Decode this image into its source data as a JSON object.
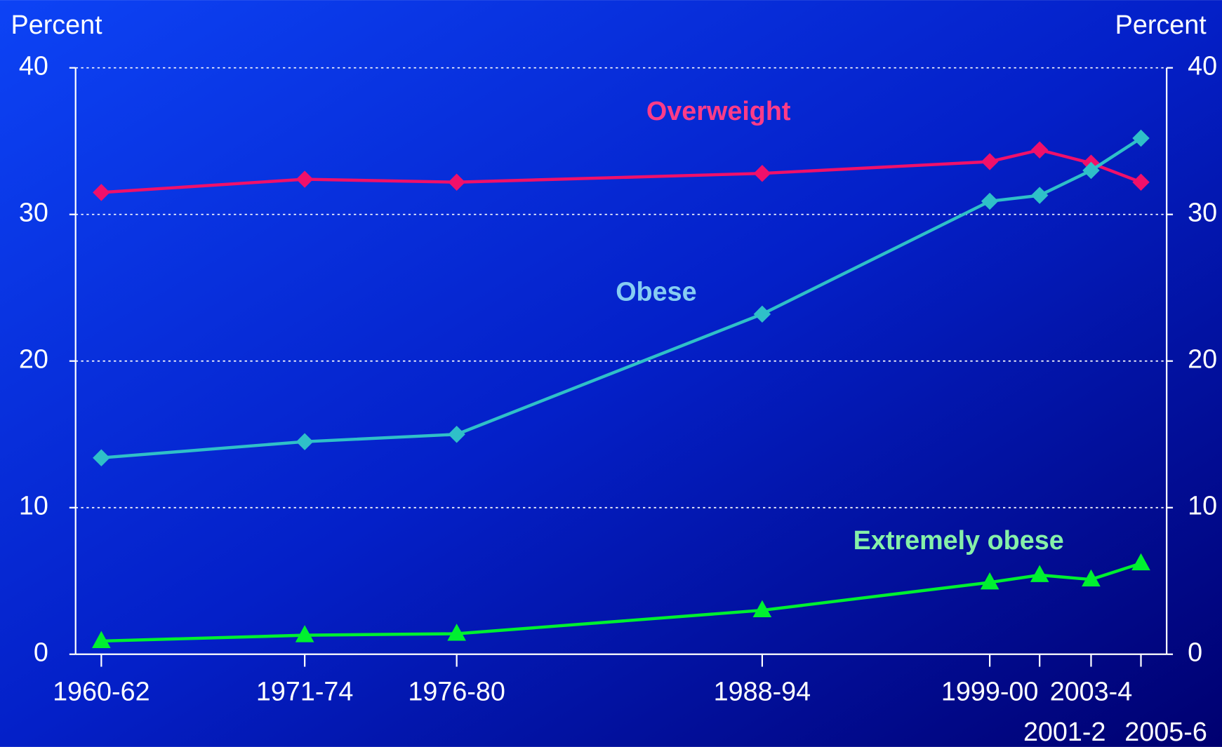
{
  "chart_data": {
    "type": "line",
    "ylabel": "Percent",
    "y2label": "Percent",
    "categories": [
      "1960-62",
      "1971-74",
      "1976-80",
      "1988-94",
      "1999-00",
      "2001-2",
      "2003-4",
      "2005-6"
    ],
    "series": [
      {
        "name": "Overweight",
        "color": "#f0106a",
        "label_color": "#ff3c88",
        "marker": "diamond",
        "values": [
          31.5,
          32.4,
          32.2,
          32.8,
          33.6,
          34.4,
          33.5,
          32.2
        ]
      },
      {
        "name": "Obese",
        "color": "#2fc0c8",
        "label_color": "#86cdf2",
        "marker": "diamond",
        "values": [
          13.4,
          14.5,
          15.0,
          23.2,
          30.9,
          31.3,
          33.0,
          35.2
        ]
      },
      {
        "name": "Extremely obese",
        "color": "#00f030",
        "label_color": "#86f0a8",
        "marker": "triangle",
        "values": [
          0.9,
          1.3,
          1.4,
          3.0,
          4.9,
          5.4,
          5.1,
          6.2
        ]
      }
    ],
    "ylim": [
      0,
      40
    ],
    "yticks": [
      0,
      10,
      20,
      30,
      40
    ],
    "y2lim": [
      0,
      40
    ],
    "y2ticks": [
      0,
      10,
      20,
      30,
      40
    ],
    "grid": true
  }
}
